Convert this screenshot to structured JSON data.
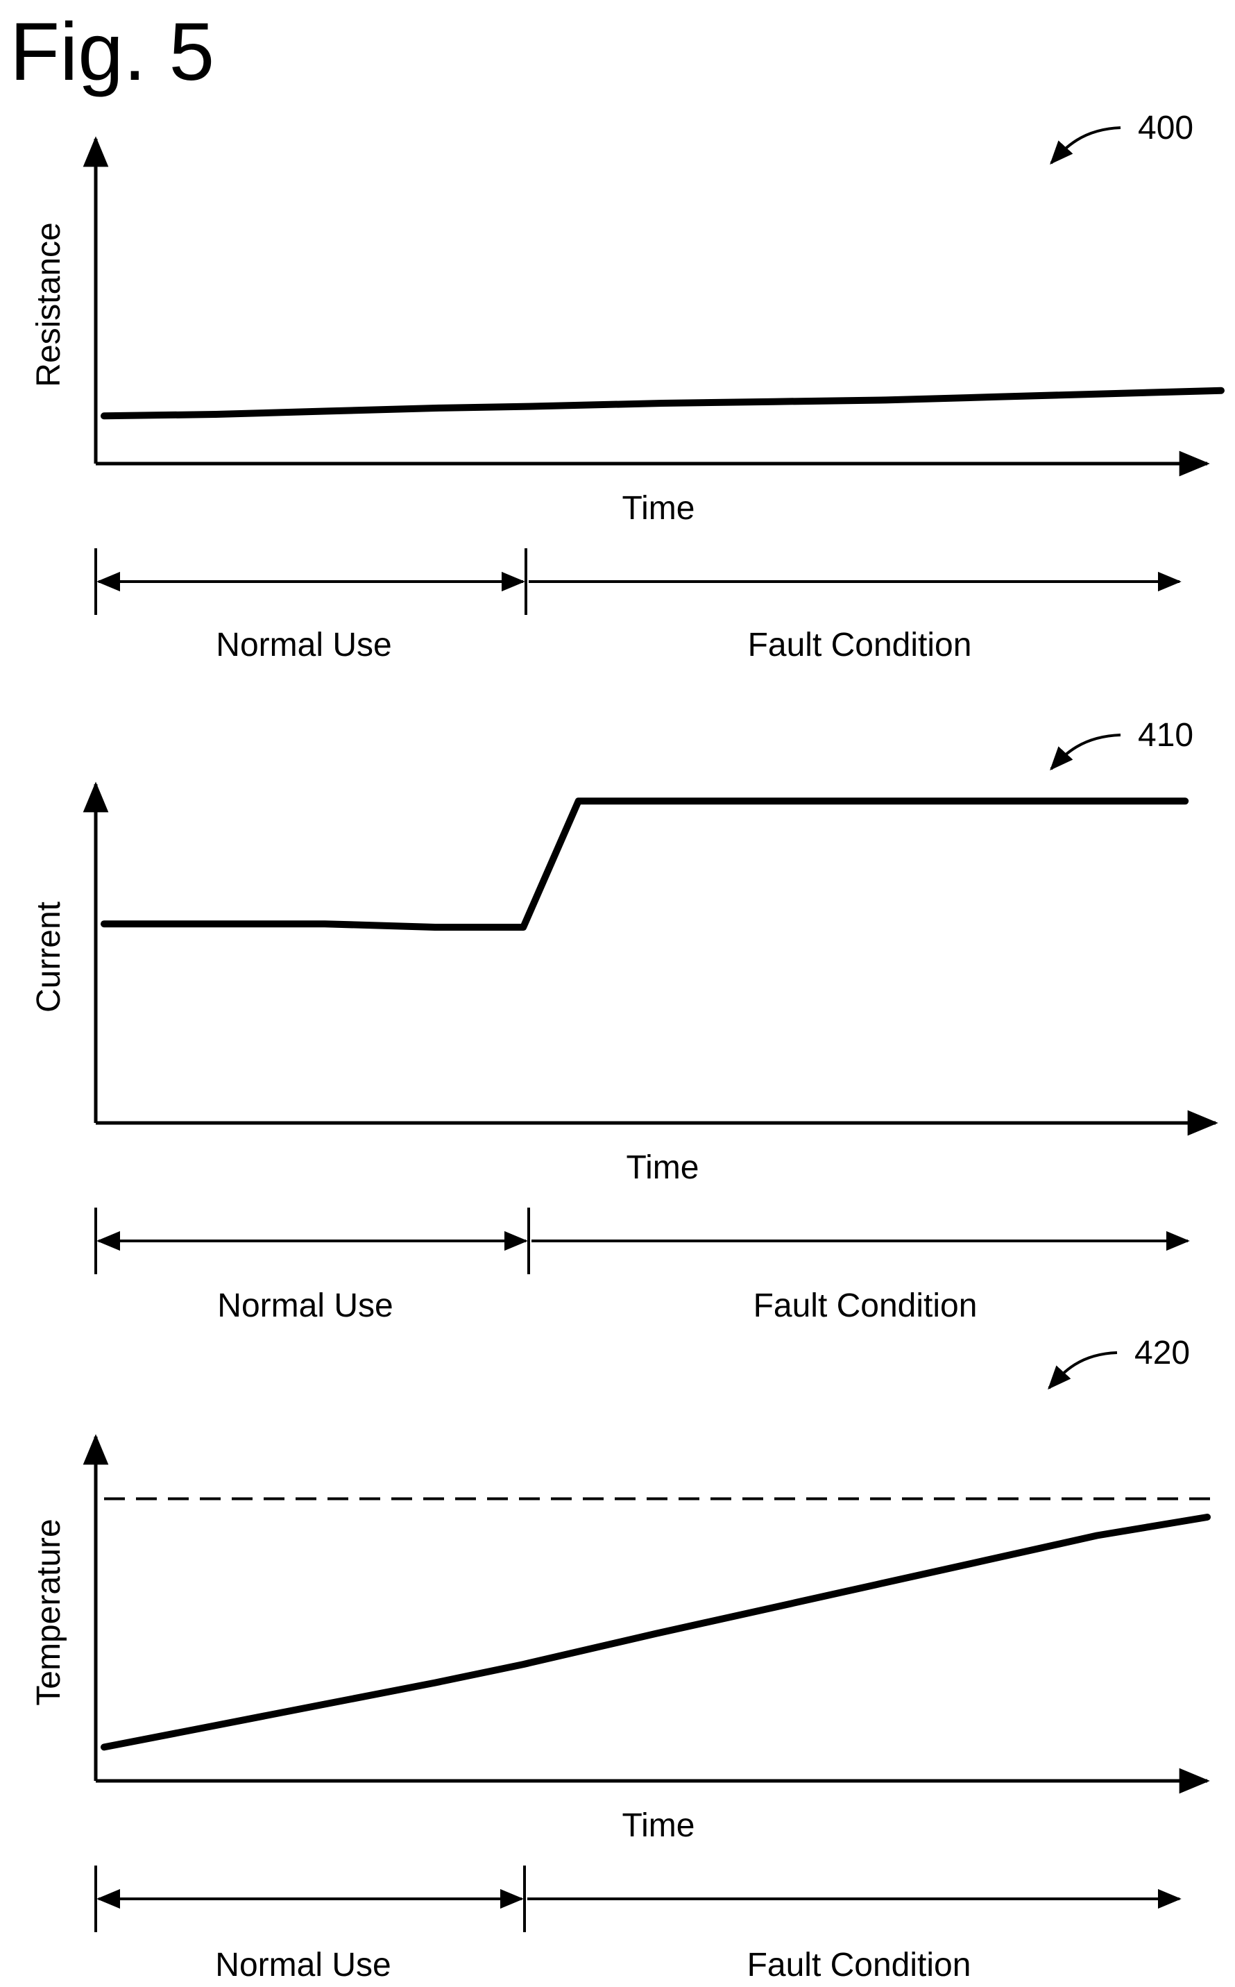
{
  "figure_title": "Fig. 5",
  "chart_data": [
    {
      "type": "line",
      "ref": "400",
      "ylabel": "Resistance",
      "xlabel": "Time",
      "phases": [
        {
          "label": "Normal Use",
          "range": [
            0,
            0.38
          ]
        },
        {
          "label": "Fault Condition",
          "range": [
            0.38,
            0.96
          ]
        }
      ],
      "x": [
        0,
        0.1,
        0.2,
        0.3,
        0.38,
        0.5,
        0.6,
        0.7,
        0.8,
        0.9,
        1.0
      ],
      "values": [
        0.15,
        0.155,
        0.165,
        0.175,
        0.18,
        0.19,
        0.195,
        0.2,
        0.21,
        0.22,
        0.23
      ],
      "xlim": [
        0,
        1
      ],
      "ylim": [
        0,
        1
      ]
    },
    {
      "type": "line",
      "ref": "410",
      "ylabel": "Current",
      "xlabel": "Time",
      "phases": [
        {
          "label": "Normal Use",
          "range": [
            0,
            0.38
          ]
        },
        {
          "label": "Fault Condition",
          "range": [
            0.38,
            0.96
          ]
        }
      ],
      "x": [
        0,
        0.1,
        0.2,
        0.3,
        0.38,
        0.43,
        0.55,
        0.7,
        0.85,
        0.98
      ],
      "values": [
        0.6,
        0.6,
        0.6,
        0.59,
        0.59,
        0.97,
        0.97,
        0.97,
        0.97,
        0.97
      ],
      "xlim": [
        0,
        1
      ],
      "ylim": [
        0,
        1
      ]
    },
    {
      "type": "line",
      "ref": "420",
      "ylabel": "Temperature",
      "xlabel": "Time",
      "phases": [
        {
          "label": "Normal Use",
          "range": [
            0,
            0.38
          ]
        },
        {
          "label": "Fault Condition",
          "range": [
            0.38,
            0.96
          ]
        }
      ],
      "x": [
        0,
        0.1,
        0.2,
        0.3,
        0.38,
        0.5,
        0.6,
        0.7,
        0.8,
        0.9,
        1.0
      ],
      "values": [
        0.11,
        0.18,
        0.25,
        0.32,
        0.38,
        0.48,
        0.56,
        0.64,
        0.72,
        0.8,
        0.86
      ],
      "threshold": 0.92,
      "xlim": [
        0,
        1
      ],
      "ylim": [
        0,
        1.1
      ]
    }
  ]
}
